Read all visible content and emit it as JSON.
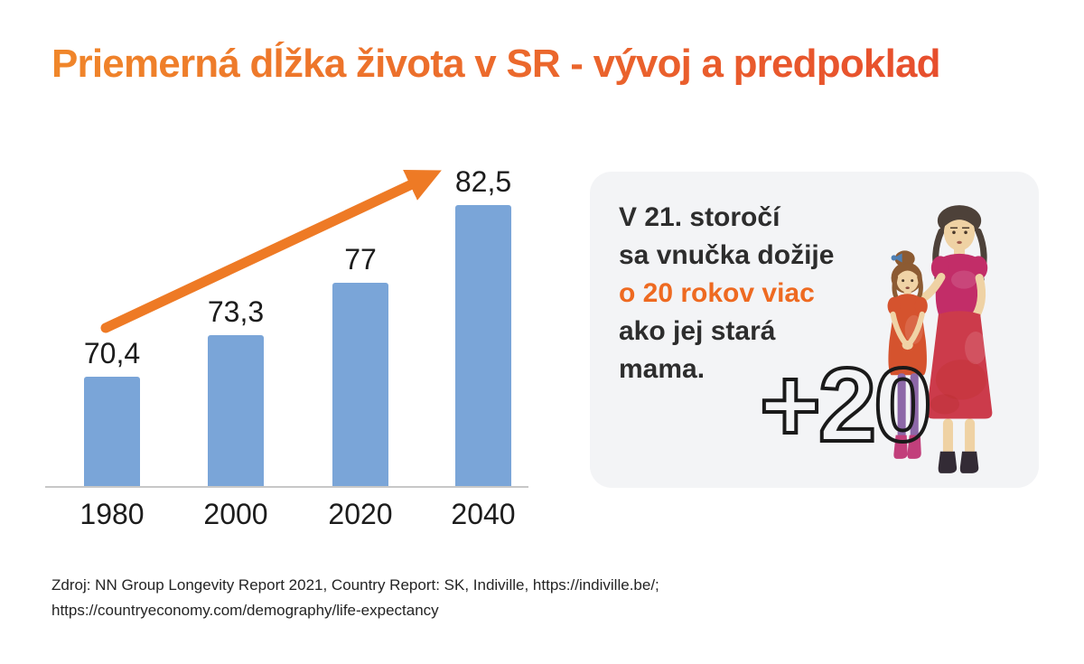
{
  "title": {
    "text": "Priemerná dĺžka života v SR - vývoj a predpoklad"
  },
  "chart_data": {
    "type": "bar",
    "title": "Priemerná dĺžka života v SR - vývoj a predpoklad",
    "categories": [
      "1980",
      "2000",
      "2020",
      "2040"
    ],
    "values": [
      70.4,
      73.3,
      77,
      82.5
    ],
    "value_labels": [
      "70,4",
      "73,3",
      "77",
      "82,5"
    ],
    "xlabel": "",
    "ylabel": "",
    "ylim": [
      62.7,
      85
    ],
    "grid": false,
    "legend": false,
    "bar_color": "#7AA5D8",
    "annotations": [
      "orange upward trend arrow from 1980 bar to 2040 bar"
    ]
  },
  "card": {
    "lines": [
      {
        "text": "V 21. storočí",
        "highlight": false
      },
      {
        "text": "sa vnučka dožije",
        "highlight": false
      },
      {
        "text": "o 20 rokov viac",
        "highlight": true
      },
      {
        "text": "ako jej stará",
        "highlight": false
      },
      {
        "text": "mama.",
        "highlight": false
      }
    ],
    "plus_label": "+20",
    "illustration": "watercolor grandmother and granddaughter"
  },
  "source": {
    "line1": "Zdroj: NN Group Longevity Report 2021, Country Report: SK, Indiville, https://indiville.be/;",
    "line2": "https://countryeconomy.com/demography/life-expectancy"
  },
  "colors": {
    "accent_orange": "#EE7A25",
    "title_gradient_start": "#F0862A",
    "title_gradient_end": "#E74E2D",
    "bar_blue": "#7AA5D8",
    "card_background": "#F3F4F6",
    "text_dark": "#2D2D2D",
    "axis_gray": "#C7C7C7",
    "highlight_text": "#EE6A21"
  }
}
